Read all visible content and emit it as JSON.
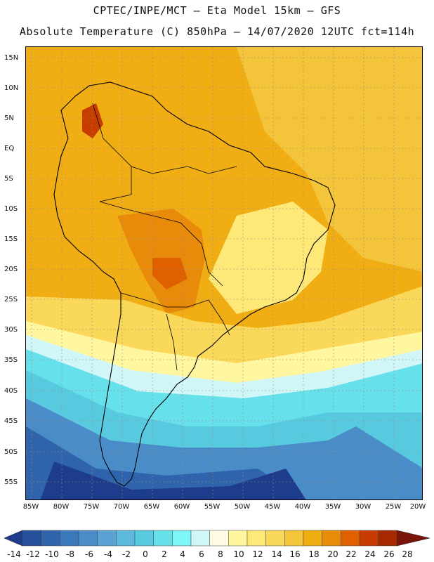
{
  "header": {
    "title_line1": "CPTEC/INPE/MCT –  Eta Model 15km – GFS",
    "title_line2": "Absolute Temperature (C) 850hPa – 14/07/2020 12UTC fct=114h"
  },
  "map": {
    "region": "South America",
    "lat_labels": [
      "15N",
      "10N",
      "5N",
      "EQ",
      "5S",
      "10S",
      "15S",
      "20S",
      "25S",
      "30S",
      "35S",
      "40S",
      "45S",
      "50S",
      "55S"
    ],
    "lon_labels": [
      "85W",
      "80W",
      "75W",
      "70W",
      "65W",
      "60W",
      "55W",
      "50W",
      "45W",
      "40W",
      "35W",
      "30W",
      "25W",
      "20W"
    ]
  },
  "colorbar": {
    "labels": [
      "-14",
      "-12",
      "-10",
      "-8",
      "-6",
      "-4",
      "-2",
      "0",
      "2",
      "4",
      "6",
      "8",
      "10",
      "12",
      "14",
      "16",
      "18",
      "20",
      "22",
      "24",
      "26",
      "28"
    ],
    "colors": [
      "#1e3c8c",
      "#26509c",
      "#2f64ac",
      "#3a78bc",
      "#4a8cc8",
      "#58a2d4",
      "#5cb8dc",
      "#58cae0",
      "#66e0ea",
      "#7cf6f6",
      "#d0f6f8",
      "#fffbe2",
      "#fff6a0",
      "#fde878",
      "#fad85a",
      "#f4c43a",
      "#f0ae14",
      "#e88a0a",
      "#e06000",
      "#c83c00",
      "#a82800",
      "#7a1408"
    ]
  }
}
